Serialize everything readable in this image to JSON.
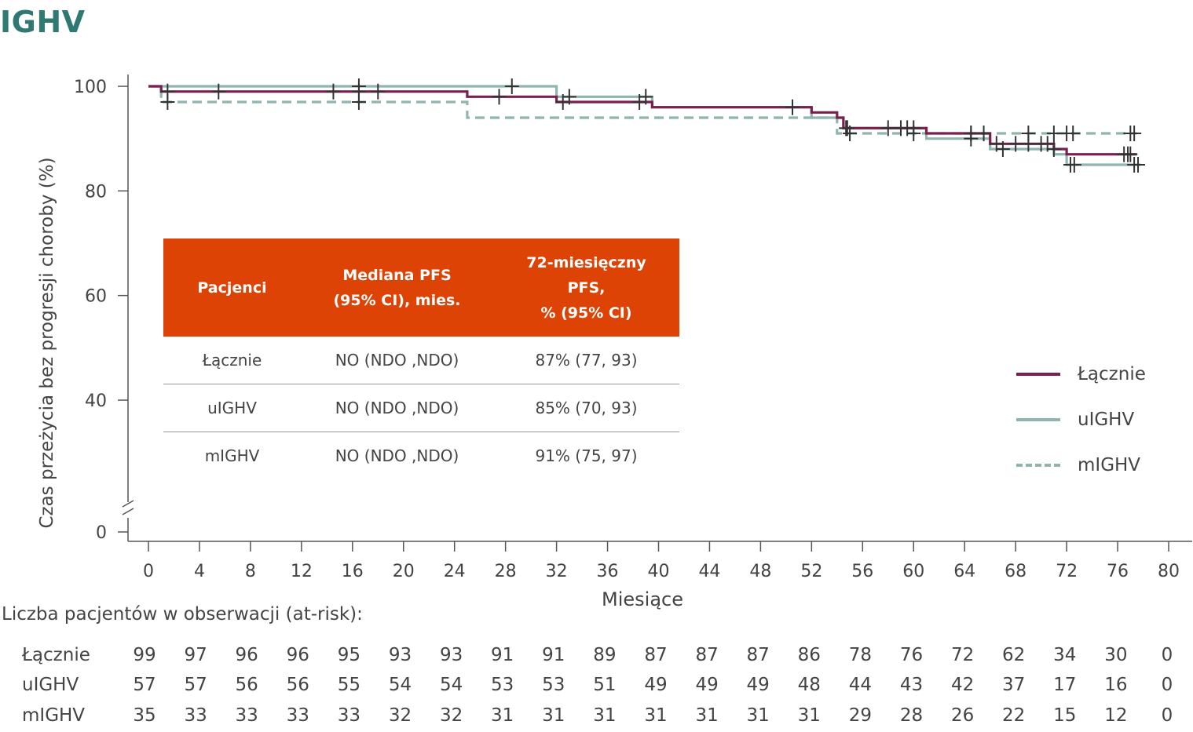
{
  "title": "IGHV",
  "chart_data": {
    "type": "line",
    "ylabel": "Czas przeżycia bez progresji choroby (%)",
    "xlabel": "Miesiące",
    "xlim": [
      0,
      80
    ],
    "ylim": [
      0,
      100
    ],
    "x_ticks": [
      "0",
      "4",
      "8",
      "12",
      "16",
      "20",
      "24",
      "28",
      "32",
      "36",
      "40",
      "44",
      "48",
      "52",
      "56",
      "60",
      "64",
      "68",
      "72",
      "76",
      "80"
    ],
    "y_ticks": [
      "0",
      "40",
      "60",
      "80",
      "100"
    ],
    "axis_break": true,
    "legend_position": "right",
    "series": [
      {
        "name": "Łącznie",
        "color": "#7b1f4f",
        "style": "solid",
        "steps": [
          [
            0,
            100
          ],
          [
            1,
            100
          ],
          [
            1,
            99
          ],
          [
            25,
            99
          ],
          [
            25,
            98
          ],
          [
            32,
            98
          ],
          [
            32,
            97
          ],
          [
            39.5,
            97
          ],
          [
            39.5,
            96
          ],
          [
            52,
            96
          ],
          [
            52,
            95
          ],
          [
            54,
            95
          ],
          [
            54,
            94
          ],
          [
            54.5,
            94
          ],
          [
            54.5,
            92
          ],
          [
            61,
            92
          ],
          [
            61,
            91
          ],
          [
            66,
            91
          ],
          [
            66,
            89
          ],
          [
            71,
            89
          ],
          [
            71,
            88
          ],
          [
            72,
            88
          ],
          [
            72,
            87
          ],
          [
            77.5,
            87
          ]
        ],
        "censor": [
          [
            1.5,
            99
          ],
          [
            5.5,
            99
          ],
          [
            14.5,
            99
          ],
          [
            16.5,
            99
          ],
          [
            18,
            99
          ],
          [
            27.5,
            98
          ],
          [
            32.5,
            97
          ],
          [
            38.5,
            97
          ],
          [
            50.5,
            96
          ],
          [
            54.8,
            92
          ],
          [
            58,
            92
          ],
          [
            59,
            92
          ],
          [
            60,
            92
          ],
          [
            64.5,
            91
          ],
          [
            65.5,
            91
          ],
          [
            66.5,
            89
          ],
          [
            68,
            89
          ],
          [
            69,
            89
          ],
          [
            70,
            89
          ],
          [
            70.5,
            89
          ],
          [
            71,
            88
          ],
          [
            76.5,
            87
          ],
          [
            76.8,
            87
          ],
          [
            77,
            87
          ]
        ]
      },
      {
        "name": "uIGHV",
        "color": "#8fb5ae",
        "style": "solid",
        "steps": [
          [
            0,
            100
          ],
          [
            32,
            100
          ],
          [
            32,
            98
          ],
          [
            39.5,
            98
          ],
          [
            39.5,
            96
          ],
          [
            52,
            96
          ],
          [
            52,
            94
          ],
          [
            54.5,
            94
          ],
          [
            54.5,
            92
          ],
          [
            61,
            92
          ],
          [
            61,
            90
          ],
          [
            66,
            90
          ],
          [
            66,
            88
          ],
          [
            71,
            88
          ],
          [
            71,
            87
          ],
          [
            72,
            87
          ],
          [
            72,
            85
          ],
          [
            77.8,
            85
          ]
        ],
        "censor": [
          [
            16.5,
            100
          ],
          [
            28.5,
            100
          ],
          [
            33,
            98
          ],
          [
            39,
            98
          ],
          [
            54.7,
            92
          ],
          [
            59.5,
            92
          ],
          [
            64.5,
            90
          ],
          [
            67,
            88
          ],
          [
            72.3,
            85
          ],
          [
            72.6,
            85
          ],
          [
            77.3,
            85
          ],
          [
            77.6,
            85
          ]
        ]
      },
      {
        "name": "mIGHV",
        "color": "#8fb5ae",
        "style": "dashed",
        "steps": [
          [
            0,
            100
          ],
          [
            1,
            100
          ],
          [
            1,
            97
          ],
          [
            25,
            97
          ],
          [
            25,
            94
          ],
          [
            54,
            94
          ],
          [
            54,
            91
          ],
          [
            77.5,
            91
          ]
        ],
        "censor": [
          [
            1.5,
            97
          ],
          [
            16.5,
            97
          ],
          [
            55,
            91
          ],
          [
            60,
            91
          ],
          [
            64.5,
            91
          ],
          [
            69,
            91
          ],
          [
            71,
            91
          ],
          [
            72,
            91
          ],
          [
            72.5,
            91
          ],
          [
            77,
            91
          ],
          [
            77.3,
            91
          ]
        ]
      }
    ]
  },
  "summary_table": {
    "headers": [
      "Pacjenci",
      "Mediana PFS\n(95% CI), mies.",
      "72-miesięczny\nPFS,\n% (95% CI)"
    ],
    "rows": [
      [
        "Łącznie",
        "NO (NDO ,NDO)",
        "87% (77, 93)"
      ],
      [
        "uIGHV",
        "NO (NDO ,NDO)",
        "85% (70, 93)"
      ],
      [
        "mIGHV",
        "NO (NDO ,NDO)",
        "91% (75, 97)"
      ]
    ],
    "header_color": "#dc4305"
  },
  "at_risk": {
    "title": "Liczba pacjentów w obserwacji (at-risk):",
    "rows": [
      {
        "label": "Łącznie",
        "values": [
          "99",
          "97",
          "96",
          "96",
          "95",
          "93",
          "93",
          "91",
          "91",
          "89",
          "87",
          "87",
          "87",
          "86",
          "78",
          "76",
          "72",
          "62",
          "34",
          "30",
          "0"
        ]
      },
      {
        "label": "uIGHV",
        "values": [
          "57",
          "57",
          "56",
          "56",
          "55",
          "54",
          "54",
          "53",
          "53",
          "51",
          "49",
          "49",
          "49",
          "48",
          "44",
          "43",
          "42",
          "37",
          "17",
          "16",
          "0"
        ]
      },
      {
        "label": "mIGHV",
        "values": [
          "35",
          "33",
          "33",
          "33",
          "33",
          "32",
          "32",
          "31",
          "31",
          "31",
          "31",
          "31",
          "31",
          "31",
          "29",
          "28",
          "26",
          "22",
          "15",
          "12",
          "0"
        ]
      }
    ]
  }
}
